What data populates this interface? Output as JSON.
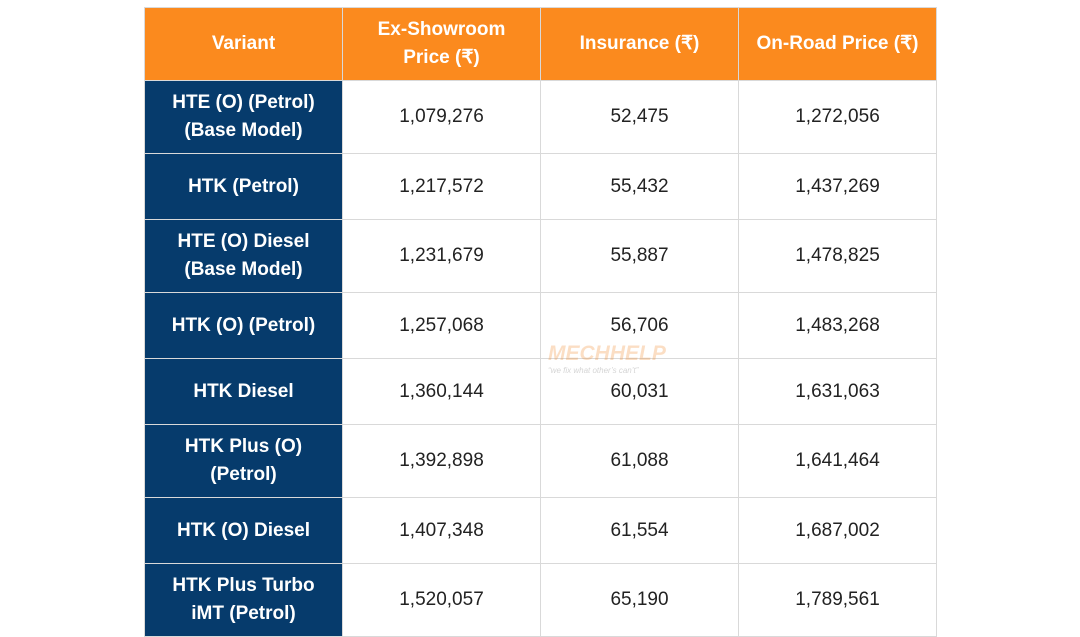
{
  "watermark": {
    "brand": "MECHHELP",
    "tagline": "“we fix what other’s can’t”"
  },
  "table": {
    "header": [
      "Variant",
      "Ex-Showroom Price (₹)",
      "Insurance (₹)",
      "On-Road Price (₹)"
    ],
    "rows": [
      [
        "HTE (O) (Petrol) (Base Model)",
        "1,079,276",
        "52,475",
        "1,272,056"
      ],
      [
        "HTK (Petrol)",
        "1,217,572",
        "55,432",
        "1,437,269"
      ],
      [
        "HTE (O) Diesel (Base Model)",
        "1,231,679",
        "55,887",
        "1,478,825"
      ],
      [
        "HTK (O) (Petrol)",
        "1,257,068",
        "56,706",
        "1,483,268"
      ],
      [
        "HTK Diesel",
        "1,360,144",
        "60,031",
        "1,631,063"
      ],
      [
        "HTK Plus (O) (Petrol)",
        "1,392,898",
        "61,088",
        "1,641,464"
      ],
      [
        "HTK (O) Diesel",
        "1,407,348",
        "61,554",
        "1,687,002"
      ],
      [
        "HTK Plus Turbo iMT (Petrol)",
        "1,520,057",
        "65,190",
        "1,789,561"
      ]
    ]
  }
}
